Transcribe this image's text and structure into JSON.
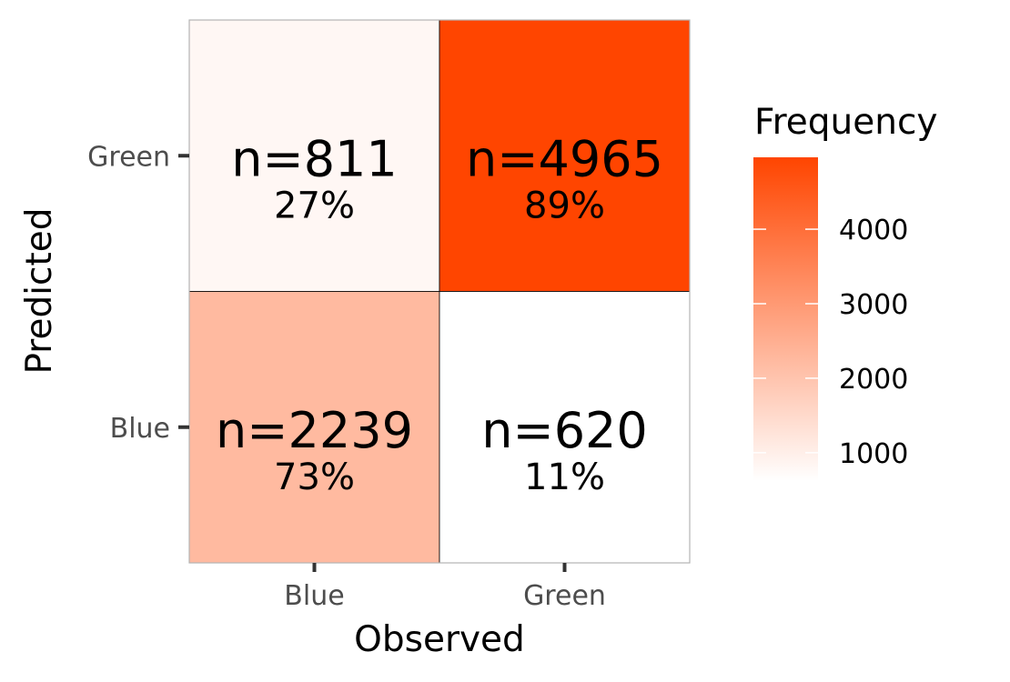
{
  "chart_data": {
    "type": "heatmap",
    "xlabel": "Observed",
    "ylabel": "Predicted",
    "x_categories": [
      "Blue",
      "Green"
    ],
    "y_categories": [
      "Blue",
      "Green"
    ],
    "cells": [
      {
        "observed": "Blue",
        "predicted": "Green",
        "value": 811,
        "n_label": "n=811",
        "pct_label": "27%"
      },
      {
        "observed": "Green",
        "predicted": "Green",
        "value": 4965,
        "n_label": "n=4965",
        "pct_label": "89%"
      },
      {
        "observed": "Blue",
        "predicted": "Blue",
        "value": 2239,
        "n_label": "n=2239",
        "pct_label": "73%"
      },
      {
        "observed": "Green",
        "predicted": "Blue",
        "value": 620,
        "n_label": "n=620",
        "pct_label": "11%"
      }
    ],
    "legend": {
      "title": "Frequency",
      "min": 620,
      "max": 4965,
      "ticks": [
        1000,
        2000,
        3000,
        4000
      ],
      "tick_labels": [
        "1000",
        "2000",
        "3000",
        "4000"
      ],
      "low_color": "#ffffff",
      "high_color": "#ff4500",
      "placement": "right"
    },
    "grid": false
  }
}
